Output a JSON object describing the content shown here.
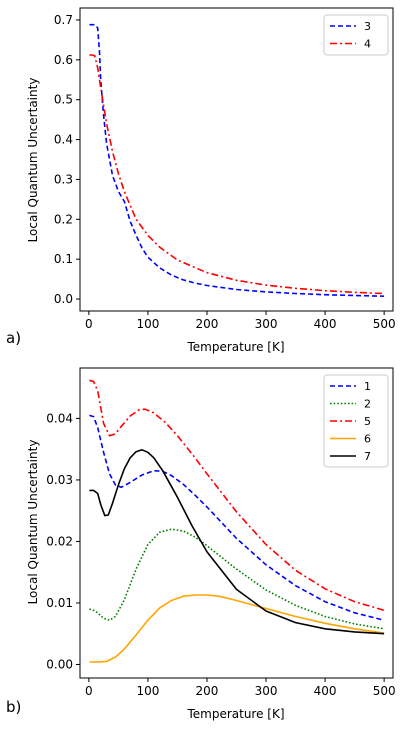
{
  "chart_data": [
    {
      "type": "line",
      "panel_label": "a)",
      "xlabel": "Temperature [K]",
      "ylabel": "Local Quantum Uncertainty",
      "xlim": [
        -15,
        515
      ],
      "ylim": [
        -0.03,
        0.73
      ],
      "xticks": [
        0,
        100,
        200,
        300,
        400,
        500
      ],
      "yticks": [
        0.0,
        0.1,
        0.2,
        0.3,
        0.4,
        0.5,
        0.6,
        0.7
      ],
      "ytick_labels": [
        "0.0",
        "0.1",
        "0.2",
        "0.3",
        "0.4",
        "0.5",
        "0.6",
        "0.7"
      ],
      "legend": "top-right",
      "series": [
        {
          "name": "3",
          "color": "#0000ff",
          "style": "dashed",
          "points": [
            [
              1,
              0.688
            ],
            [
              5,
              0.688
            ],
            [
              10,
              0.688
            ],
            [
              15,
              0.68
            ],
            [
              18,
              0.62
            ],
            [
              20,
              0.55
            ],
            [
              25,
              0.46
            ],
            [
              30,
              0.39
            ],
            [
              40,
              0.31
            ],
            [
              50,
              0.27
            ],
            [
              60,
              0.245
            ],
            [
              70,
              0.195
            ],
            [
              80,
              0.16
            ],
            [
              90,
              0.128
            ],
            [
              100,
              0.105
            ],
            [
              120,
              0.078
            ],
            [
              140,
              0.06
            ],
            [
              160,
              0.048
            ],
            [
              180,
              0.04
            ],
            [
              200,
              0.034
            ],
            [
              250,
              0.024
            ],
            [
              300,
              0.018
            ],
            [
              350,
              0.014
            ],
            [
              400,
              0.011
            ],
            [
              450,
              0.009
            ],
            [
              500,
              0.007
            ]
          ]
        },
        {
          "name": "4",
          "color": "#ff0000",
          "style": "dashdot",
          "points": [
            [
              1,
              0.612
            ],
            [
              5,
              0.612
            ],
            [
              10,
              0.61
            ],
            [
              15,
              0.58
            ],
            [
              20,
              0.53
            ],
            [
              30,
              0.44
            ],
            [
              40,
              0.37
            ],
            [
              50,
              0.315
            ],
            [
              60,
              0.27
            ],
            [
              80,
              0.2
            ],
            [
              100,
              0.16
            ],
            [
              120,
              0.13
            ],
            [
              150,
              0.098
            ],
            [
              200,
              0.066
            ],
            [
              250,
              0.047
            ],
            [
              300,
              0.035
            ],
            [
              350,
              0.027
            ],
            [
              400,
              0.021
            ],
            [
              450,
              0.017
            ],
            [
              500,
              0.014
            ]
          ]
        }
      ]
    },
    {
      "type": "line",
      "panel_label": "b)",
      "xlabel": "Temperature [K]",
      "ylabel": "Local Quantum Uncertainty",
      "xlim": [
        -15,
        515
      ],
      "ylim": [
        -0.0022,
        0.0482
      ],
      "xticks": [
        0,
        100,
        200,
        300,
        400,
        500
      ],
      "yticks": [
        0.0,
        0.01,
        0.02,
        0.03,
        0.04
      ],
      "ytick_labels": [
        "0.00",
        "0.01",
        "0.02",
        "0.03",
        "0.04"
      ],
      "legend": "top-right",
      "series": [
        {
          "name": "1",
          "color": "#0000ff",
          "style": "dashed",
          "points": [
            [
              1,
              0.0405
            ],
            [
              8,
              0.0403
            ],
            [
              15,
              0.0385
            ],
            [
              25,
              0.0345
            ],
            [
              35,
              0.031
            ],
            [
              45,
              0.0292
            ],
            [
              55,
              0.0288
            ],
            [
              70,
              0.0296
            ],
            [
              90,
              0.0308
            ],
            [
              110,
              0.0315
            ],
            [
              125,
              0.0314
            ],
            [
              140,
              0.0307
            ],
            [
              160,
              0.0293
            ],
            [
              180,
              0.0275
            ],
            [
              200,
              0.0256
            ],
            [
              250,
              0.0205
            ],
            [
              300,
              0.0162
            ],
            [
              350,
              0.0128
            ],
            [
              400,
              0.0102
            ],
            [
              450,
              0.0084
            ],
            [
              500,
              0.0072
            ]
          ]
        },
        {
          "name": "2",
          "color": "#008000",
          "style": "dotted",
          "points": [
            [
              1,
              0.009
            ],
            [
              8,
              0.0088
            ],
            [
              15,
              0.0084
            ],
            [
              25,
              0.0075
            ],
            [
              35,
              0.0072
            ],
            [
              45,
              0.0078
            ],
            [
              60,
              0.0105
            ],
            [
              80,
              0.0155
            ],
            [
              100,
              0.0195
            ],
            [
              120,
              0.0215
            ],
            [
              140,
              0.022
            ],
            [
              160,
              0.0217
            ],
            [
              180,
              0.0207
            ],
            [
              200,
              0.0193
            ],
            [
              250,
              0.0155
            ],
            [
              300,
              0.0121
            ],
            [
              350,
              0.0096
            ],
            [
              400,
              0.0078
            ],
            [
              450,
              0.0066
            ],
            [
              500,
              0.0058
            ]
          ]
        },
        {
          "name": "5",
          "color": "#ff0000",
          "style": "dashdot",
          "points": [
            [
              1,
              0.0462
            ],
            [
              8,
              0.046
            ],
            [
              15,
              0.0445
            ],
            [
              25,
              0.0392
            ],
            [
              35,
              0.0372
            ],
            [
              45,
              0.0375
            ],
            [
              55,
              0.0387
            ],
            [
              70,
              0.0404
            ],
            [
              85,
              0.0414
            ],
            [
              95,
              0.0415
            ],
            [
              110,
              0.0409
            ],
            [
              130,
              0.0393
            ],
            [
              150,
              0.0372
            ],
            [
              175,
              0.0342
            ],
            [
              200,
              0.031
            ],
            [
              250,
              0.0248
            ],
            [
              300,
              0.0195
            ],
            [
              350,
              0.0153
            ],
            [
              400,
              0.0123
            ],
            [
              450,
              0.0102
            ],
            [
              500,
              0.0088
            ]
          ]
        },
        {
          "name": "6",
          "color": "#ffa500",
          "style": "solid",
          "points": [
            [
              1,
              0.0004
            ],
            [
              15,
              0.0004
            ],
            [
              30,
              0.0005
            ],
            [
              45,
              0.0012
            ],
            [
              60,
              0.0025
            ],
            [
              80,
              0.0048
            ],
            [
              100,
              0.0072
            ],
            [
              120,
              0.0092
            ],
            [
              140,
              0.0104
            ],
            [
              160,
              0.0111
            ],
            [
              180,
              0.0113
            ],
            [
              200,
              0.0113
            ],
            [
              220,
              0.0111
            ],
            [
              250,
              0.0104
            ],
            [
              300,
              0.0091
            ],
            [
              350,
              0.0078
            ],
            [
              400,
              0.0067
            ],
            [
              450,
              0.0058
            ],
            [
              500,
              0.0051
            ]
          ]
        },
        {
          "name": "7",
          "color": "#000000",
          "style": "solid",
          "points": [
            [
              1,
              0.0283
            ],
            [
              8,
              0.0283
            ],
            [
              15,
              0.0278
            ],
            [
              20,
              0.026
            ],
            [
              27,
              0.0242
            ],
            [
              33,
              0.0243
            ],
            [
              40,
              0.0262
            ],
            [
              50,
              0.0292
            ],
            [
              60,
              0.0318
            ],
            [
              70,
              0.0336
            ],
            [
              80,
              0.0346
            ],
            [
              90,
              0.0349
            ],
            [
              100,
              0.0345
            ],
            [
              110,
              0.0336
            ],
            [
              125,
              0.0315
            ],
            [
              150,
              0.0272
            ],
            [
              175,
              0.0225
            ],
            [
              200,
              0.0183
            ],
            [
              250,
              0.0122
            ],
            [
              300,
              0.0087
            ],
            [
              350,
              0.0068
            ],
            [
              400,
              0.0058
            ],
            [
              450,
              0.0053
            ],
            [
              500,
              0.005
            ]
          ]
        }
      ]
    }
  ]
}
